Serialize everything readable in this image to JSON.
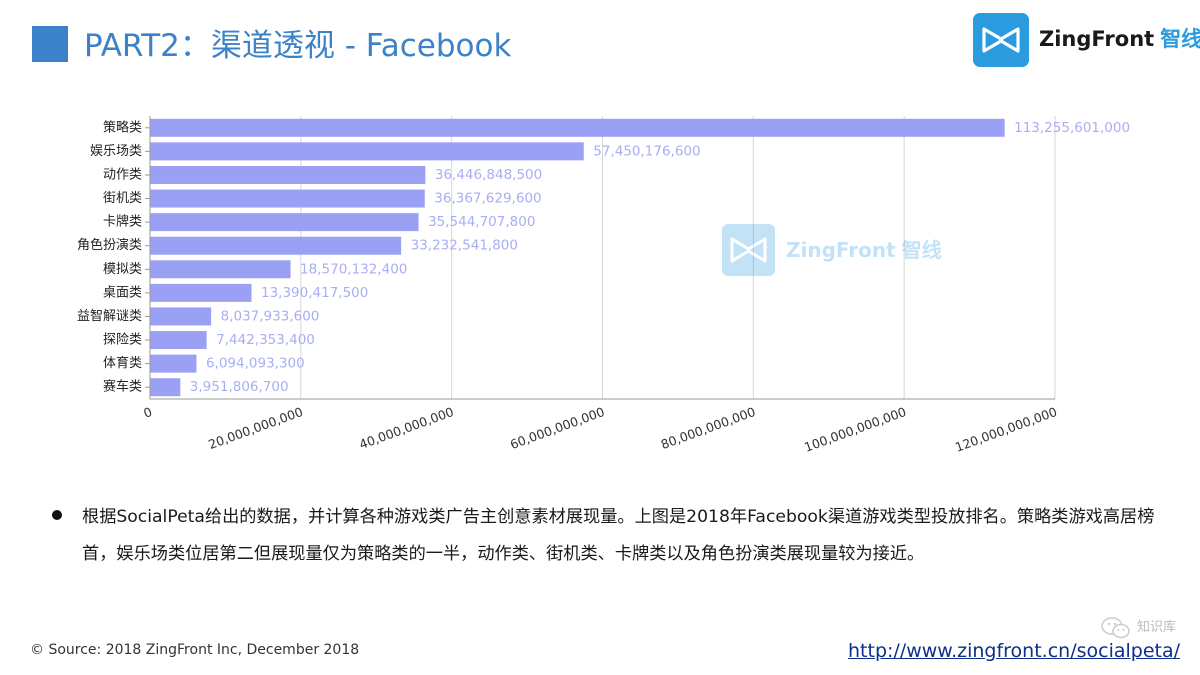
{
  "header": {
    "title": "PART2：渠道透视 - Facebook",
    "logo_text": "ZingFront",
    "logo_cn": "智线",
    "accent_color": "#3b82c8",
    "logo_color": "#2b9be0"
  },
  "watermark": {
    "text": "ZingFront",
    "cn": "智线"
  },
  "chart_data": {
    "type": "bar",
    "orientation": "horizontal",
    "categories": [
      "策略类",
      "娱乐场类",
      "动作类",
      "街机类",
      "卡牌类",
      "角色扮演类",
      "模拟类",
      "桌面类",
      "益智解谜类",
      "探险类",
      "体育类",
      "赛车类"
    ],
    "values": [
      113255601000,
      57450176600,
      36446848500,
      36367629600,
      35544707800,
      33232541800,
      18570132400,
      13390417500,
      8037933600,
      7442353400,
      6094093300,
      3951806700
    ],
    "value_labels": [
      "113,255,601,000",
      "57,450,176,600",
      "36,446,848,500",
      "36,367,629,600",
      "35,544,707,800",
      "33,232,541,800",
      "18,570,132,400",
      "13,390,417,500",
      "8,037,933,600",
      "7,442,353,400",
      "6,094,093,300",
      "3,951,806,700"
    ],
    "xlim": [
      0,
      120000000000
    ],
    "x_ticks": [
      0,
      20000000000,
      40000000000,
      60000000000,
      80000000000,
      100000000000,
      120000000000
    ],
    "x_tick_labels": [
      "0",
      "20,000,000,000",
      "40,000,000,000",
      "60,000,000,000",
      "80,000,000,000",
      "100,000,000,000",
      "120,000,000,000"
    ],
    "bar_color": "#9aa0f4",
    "label_color": "#a9aef2",
    "grid": "vertical"
  },
  "description": "根据SocialPeta给出的数据，并计算各种游戏类广告主创意素材展现量。上图是2018年Facebook渠道游戏类型投放排名。策略类游戏高居榜首，娱乐场类位居第二但展现量仅为策略类的一半，动作类、街机类、卡牌类以及角色扮演类展现量较为接近。",
  "footer": {
    "source": "© Source: 2018 ZingFront Inc, December 2018",
    "url": "http://www.zingfront.cn/socialpeta/",
    "wechat_label": "知识库"
  }
}
